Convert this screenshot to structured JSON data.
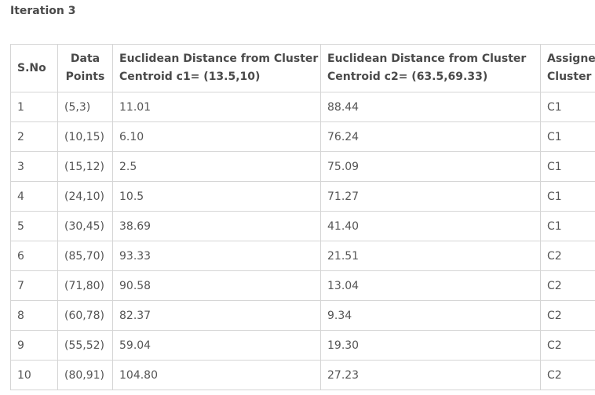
{
  "title": "Iteration 3",
  "table": {
    "headers": {
      "sno": "S.No",
      "data_points": "Data Points",
      "dist_c1": "Euclidean Distance from Cluster Centroid c1= (13.5,10)",
      "dist_c2": "Euclidean Distance from Cluster Centroid c2= (63.5,69.33)",
      "assigned": "Assigned Cluster"
    },
    "rows": [
      {
        "sno": "1",
        "point": "(5,3)",
        "d1": "11.01",
        "d2": "88.44",
        "cluster": "C1"
      },
      {
        "sno": "2",
        "point": "(10,15)",
        "d1": "6.10",
        "d2": "76.24",
        "cluster": "C1"
      },
      {
        "sno": "3",
        "point": "(15,12)",
        "d1": "2.5",
        "d2": "75.09",
        "cluster": "C1"
      },
      {
        "sno": "4",
        "point": "(24,10)",
        "d1": "10.5",
        "d2": "71.27",
        "cluster": "C1"
      },
      {
        "sno": "5",
        "point": "(30,45)",
        "d1": "38.69",
        "d2": "41.40",
        "cluster": "C1"
      },
      {
        "sno": "6",
        "point": "(85,70)",
        "d1": "93.33",
        "d2": "21.51",
        "cluster": "C2"
      },
      {
        "sno": "7",
        "point": "(71,80)",
        "d1": "90.58",
        "d2": "13.04",
        "cluster": "C2"
      },
      {
        "sno": "8",
        "point": "(60,78)",
        "d1": "82.37",
        "d2": "9.34",
        "cluster": "C2"
      },
      {
        "sno": "9",
        "point": "(55,52)",
        "d1": "59.04",
        "d2": "19.30",
        "cluster": "C2"
      },
      {
        "sno": "10",
        "point": "(80,91)",
        "d1": "104.80",
        "d2": "27.23",
        "cluster": "C2"
      }
    ]
  }
}
